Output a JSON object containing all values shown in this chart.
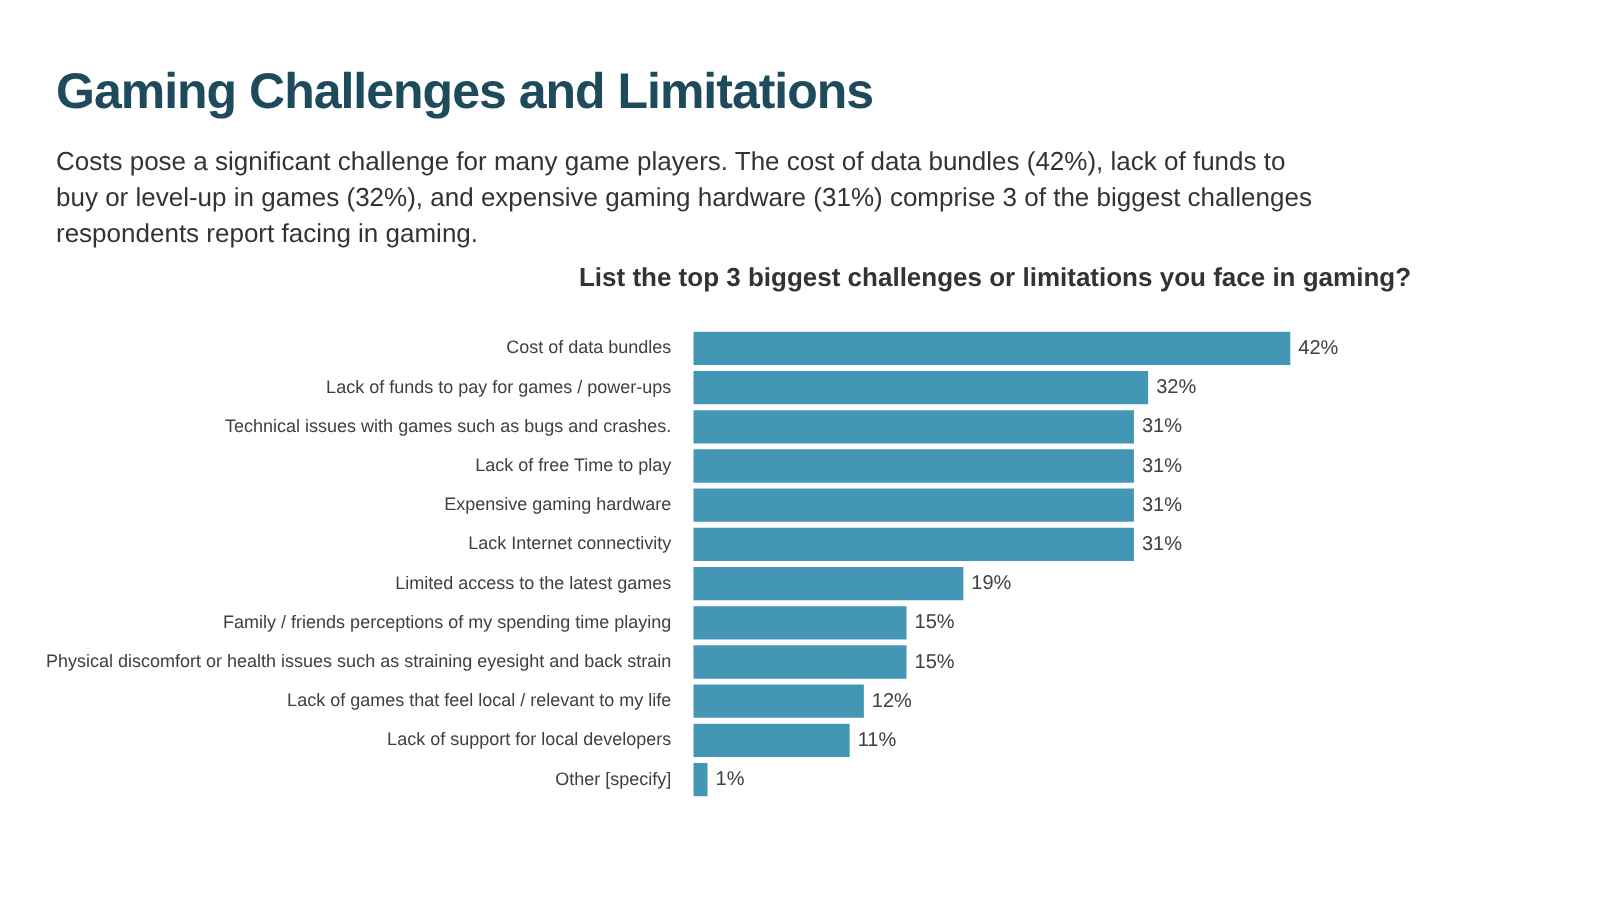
{
  "chart_data": {
    "type": "bar",
    "orientation": "horizontal",
    "title": "Gaming Challenges and Limitations",
    "subtitle": "Costs pose a significant challenge for many game players. The cost of data bundles (42%), lack of funds to buy or level-up in games (32%), and expensive gaming hardware (31%) comprise 3 of the biggest challenges respondents report facing in gaming.",
    "annotations": [
      "List the top 3 biggest challenges or limitations you face in gaming?"
    ],
    "categories": [
      "Cost of data bundles",
      "Lack of funds to pay for games / power-ups",
      "Technical issues with games such as bugs and crashes.",
      "Lack of free Time to play",
      "Expensive gaming hardware",
      "Lack Internet connectivity",
      "Limited access to the latest games",
      "Family / friends perceptions of my spending time playing",
      "Physical discomfort or health issues such as straining eyesight and back strain",
      "Lack of games that feel local / relevant to my life",
      "Lack of support for local developers",
      "Other [specify]"
    ],
    "values": [
      42,
      32,
      31,
      31,
      31,
      31,
      19,
      15,
      15,
      12,
      11,
      1
    ],
    "color": "#4397b5",
    "data_labels": true,
    "value_labels": [
      "42%",
      "32%",
      "31%",
      "31%",
      "31%",
      "31%",
      "19%",
      "15%",
      "15%",
      "12%",
      "11%",
      "1%"
    ]
  }
}
